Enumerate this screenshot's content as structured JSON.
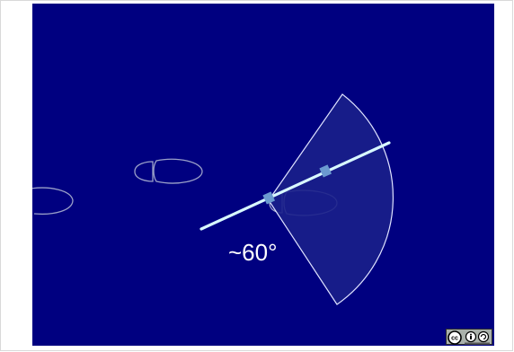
{
  "slide": {
    "background_color": "#000080",
    "angle_label": "~60°"
  },
  "colors": {
    "footprint_outline": "#9aa0c8",
    "sector_fill": "#1a1f8a",
    "sector_outline": "#dfe3ff",
    "ray_line": "#d8f8ff",
    "joint_marker": "#6b9ad0"
  },
  "license_badge": {
    "icons": [
      "cc-icon",
      "attribution-icon",
      "share-alike-icon"
    ]
  }
}
